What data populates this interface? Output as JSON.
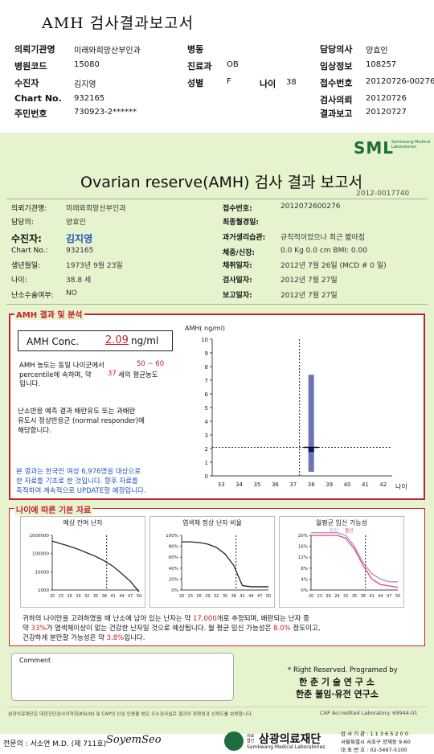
{
  "header": {
    "title": "AMH 검사결과보고서",
    "rows": [
      [
        {
          "l": "의뢰기관명",
          "v": "미래와희망산부인과"
        },
        {
          "l": "병동",
          "v": ""
        },
        {
          "l": "담당의사",
          "v": "양효인"
        }
      ],
      [
        {
          "l": "병원코드",
          "v": "15080"
        },
        {
          "l": "진료과",
          "v": "OB"
        },
        {
          "l": "임상정보",
          "v": "108257"
        }
      ],
      [
        {
          "l": "수진자",
          "v": "김지영"
        },
        {
          "l": "성별",
          "v": "F"
        },
        {
          "l": "접수번호",
          "v": "20120726-00276"
        }
      ],
      [
        {
          "l": "Chart No.",
          "v": "932165"
        },
        {
          "l": "",
          "v": ""
        },
        {
          "l": "검사의뢰",
          "v": "20120726"
        }
      ],
      [
        {
          "l": "주민번호",
          "v": "730923-2******"
        },
        {
          "l": "",
          "v": ""
        },
        {
          "l": "결과보고",
          "v": "20120727"
        }
      ]
    ],
    "age_label": "나이",
    "age_value": "38"
  },
  "logo": {
    "text": "SML",
    "sub": "Samkwang Medical Laboratories"
  },
  "report": {
    "title": "Ovarian reserve(AMH) 검사 결과 보고서",
    "doc_no": "2012-0017740",
    "left": [
      {
        "l": "의뢰기관명:",
        "v": "미래와희망산부인과"
      },
      {
        "l": "담당의:",
        "v": "양효인"
      },
      {
        "l": "수진자:",
        "v": "김지영"
      },
      {
        "l": "Chart No.:",
        "v": "932165"
      },
      {
        "l": "생년월일:",
        "v": "1973년 9월 23일"
      },
      {
        "l": "나이:",
        "v": "38.8 세"
      },
      {
        "l": "난소수술여부:",
        "v": "NO"
      }
    ],
    "right": [
      {
        "l": "접수번호:",
        "v": "2012072600276"
      },
      {
        "l": "최종월경일:",
        "v": ""
      },
      {
        "l": "과거생리습관:",
        "v": "규칙적이었으나 최근 짧아짐"
      },
      {
        "l": "체중/신장:",
        "v": "0.0 Kg      0.0 cm   BMI:     0.00"
      },
      {
        "l": "채취일자:",
        "v": "2012년 7월 26일   (MCD #  0 일)"
      },
      {
        "l": "검사일자:",
        "v": "2012년 7월 27일"
      },
      {
        "l": "보고일자:",
        "v": "2012년 7월 27일"
      }
    ]
  },
  "amh": {
    "section_title": "AMH 결과 및 분석",
    "conc_label": "AMH Conc.",
    "conc_value": "2.09",
    "conc_unit": "ng/ml",
    "para1_a": "AMH 농도는 동일 나이군에서",
    "para1_range": "50 ~  60",
    "para1_b": "percentile에 속하며, 약",
    "para1_age": "37",
    "para1_c": "세의 평균농도",
    "para1_d": "입니다.",
    "para2": [
      "난소반응 예측 결과 배란유도 또는 과배란",
      "유도시 정상반응군 (normal responder)에",
      "해당합니다."
    ],
    "note": [
      "본 결과는 한국인 여성 6,976명을 대상으로",
      "한 자료를 기초로 한 것입니다. 향후 자료를",
      "축적하여 계속적으로 UPDATE할 예정입니다."
    ]
  },
  "chart_data": [
    {
      "type": "bar",
      "title": "",
      "ylabel": "AMH( ng/ml)",
      "xlabel": "나이",
      "ylim": [
        0,
        10
      ],
      "yticks": [
        0,
        1,
        2,
        3,
        4,
        5,
        6,
        7,
        8,
        9,
        10
      ],
      "categories": [
        "33",
        "34",
        "35",
        "36",
        "37",
        "38",
        "39",
        "40",
        "41",
        "42"
      ],
      "range_bar": {
        "x": "38",
        "low": 0.3,
        "high": 7.4,
        "mean": 1.8
      },
      "patient_value": 2.09,
      "patient_age": 38.8,
      "grid": false
    },
    {
      "type": "line",
      "title": "예상 잔여 난자",
      "yscale": "log",
      "yticks": [
        "1000000",
        "100000",
        "10000",
        "1000"
      ],
      "xticks": [
        "20",
        "23",
        "26",
        "29",
        "32",
        "35",
        "38",
        "41",
        "44",
        "47",
        "50"
      ],
      "x": [
        20,
        23,
        26,
        29,
        32,
        35,
        38,
        41,
        44,
        47,
        50
      ],
      "y": [
        480000,
        350000,
        250000,
        170000,
        110000,
        70000,
        40000,
        20000,
        8000,
        3000,
        800
      ],
      "marker_age": 38.8
    },
    {
      "type": "line",
      "title": "염색체 정상 난자 비율",
      "yticks": [
        "100%",
        "80%",
        "60%",
        "40%",
        "20%",
        "0%"
      ],
      "xticks": [
        "20",
        "23",
        "26",
        "29",
        "32",
        "35",
        "38",
        "41",
        "44",
        "47",
        "50"
      ],
      "x": [
        20,
        23,
        26,
        29,
        32,
        35,
        38,
        41,
        44,
        47,
        50
      ],
      "y": [
        88,
        88,
        87,
        84,
        78,
        66,
        45,
        8,
        6,
        6,
        6
      ],
      "marker_age": 38.8
    },
    {
      "type": "line",
      "title": "월평균 임신 가능성",
      "legend": [
        "임신",
        "출산"
      ],
      "yticks": [
        "20%",
        "16%",
        "12%",
        "8%",
        "4%",
        "0%"
      ],
      "xticks": [
        "20",
        "23",
        "26",
        "29",
        "32",
        "35",
        "38",
        "41",
        "44",
        "47",
        "50"
      ],
      "x": [
        20,
        23,
        26,
        29,
        32,
        35,
        38,
        41,
        44,
        47,
        50
      ],
      "series": [
        {
          "name": "임신",
          "values": [
            21,
            21,
            21,
            21,
            20,
            16,
            10,
            6,
            4,
            3,
            3
          ],
          "color": "#b08ad0"
        },
        {
          "name": "출산",
          "values": [
            20,
            20,
            20,
            20,
            19,
            15,
            9,
            4,
            2,
            1.5,
            1
          ],
          "color": "#e0457b"
        }
      ],
      "marker_age": 38.8
    }
  ],
  "age_section": {
    "title": "나이에 따른 기본 자료",
    "summary": [
      {
        "t": "귀하의 나이만을 고려하였을 때 난소에 남아 있는 난자는 약 ",
        "c": ""
      },
      {
        "t": "17,000",
        "c": "red"
      },
      {
        "t": "개로 추정되며, 배란되는 난자 중",
        "c": ""
      }
    ],
    "summary2": [
      {
        "t": "약 ",
        "c": ""
      },
      {
        "t": "33%",
        "c": "red"
      },
      {
        "t": "가 염색체이상이 없는 건강한 난자일 것으로 예상됩니다. 월 평균 임신 가능성은 ",
        "c": ""
      },
      {
        "t": "8.0%",
        "c": "red"
      },
      {
        "t": " 정도이고,",
        "c": ""
      }
    ],
    "summary3": [
      {
        "t": "건강하게 분만할 가능성은 약 ",
        "c": ""
      },
      {
        "t": "3.8%",
        "c": "red"
      },
      {
        "t": "입니다.",
        "c": ""
      }
    ]
  },
  "comment_label": "Comment",
  "copyright": [
    "* Right Reserved. Programed by",
    "한 춘  기 술  연 구 소",
    "한춘 불임·유전 연구소"
  ],
  "bottom_note": "삼광의료재단은 대한진단검사의학회(KSLM) 및 CAP의 신임 인증을 받은 우수검사실로 결과의 정확성과 신뢰도를 보증합니다.",
  "cap": "CAP  Accredited  Laboratory.  69944-01",
  "footer": {
    "specialist": "전문의 : 서소연 M.D. (제 711호)",
    "signature": "SoyemSeo",
    "org_prefix": "의료\n법인",
    "org": "삼광의료재단",
    "org_en": "Samkwang Medical Laboratories",
    "contact": [
      "검 사 기 관 : 1 1 3 6 5 2 0 0",
      "서울특별시 서초구 양재동 9-60",
      "대 표 번 호 : 02-3497-5100"
    ]
  }
}
